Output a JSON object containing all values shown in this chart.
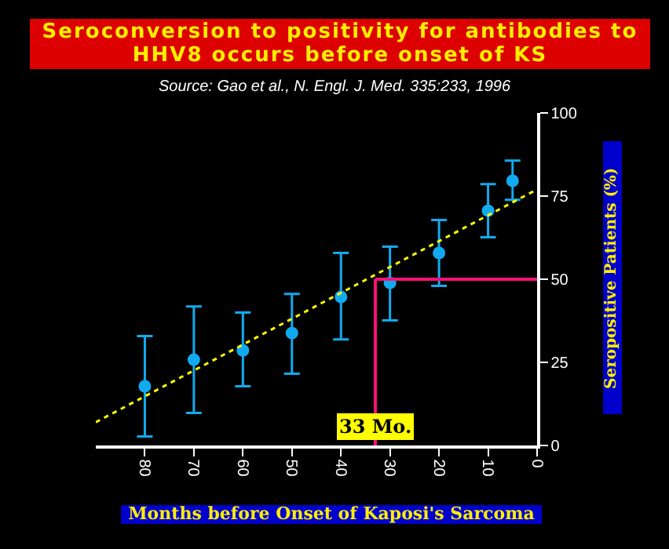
{
  "chart_data": {
    "type": "scatter",
    "title": "Seroconversion to positivity for antibodies to HHV8 occurs before onset of KS",
    "subtitle": "Source: Gao et al., N. Engl. J. Med. 335:233, 1996",
    "xlabel": "Months before Onset of Kaposi's Sarcoma",
    "ylabel": "Seropositive Patients (%)",
    "x": [
      80,
      70,
      60,
      50,
      40,
      30,
      20,
      10,
      5
    ],
    "series": [
      {
        "color": "#11aaee",
        "values": [
          17.8,
          25.8,
          28.6,
          33.8,
          44.7,
          48.9,
          57.9,
          70.6,
          79.6
        ],
        "errors": [
          [
            2.7,
            32.9
          ],
          [
            9.8,
            41.8
          ],
          [
            17.8,
            40
          ],
          [
            21.6,
            45.6
          ],
          [
            31.9,
            57.9
          ],
          [
            37.6,
            59.8
          ],
          [
            48,
            67.8
          ],
          [
            62.6,
            78.6
          ],
          [
            73.9,
            85.7
          ]
        ],
        "marker": "circle"
      },
      {
        "type": "line",
        "color": "#ffff00",
        "x": [
          90,
          0
        ],
        "values": [
          7,
          77
        ],
        "marker": "none",
        "line_style": "dotted"
      }
    ],
    "ref_lines": [
      {
        "axis": "x",
        "value": 33,
        "label": "33 Mo.",
        "color": "#ff1177"
      },
      {
        "axis": "y",
        "value": 50,
        "color": "#ff1177"
      }
    ],
    "xlim": [
      90,
      0
    ],
    "xticks": [
      80,
      70,
      60,
      50,
      40,
      30,
      20,
      10,
      0
    ],
    "ylim": [
      0,
      100
    ],
    "yticks": [
      0,
      25,
      50,
      75,
      100
    ],
    "grid": false
  }
}
